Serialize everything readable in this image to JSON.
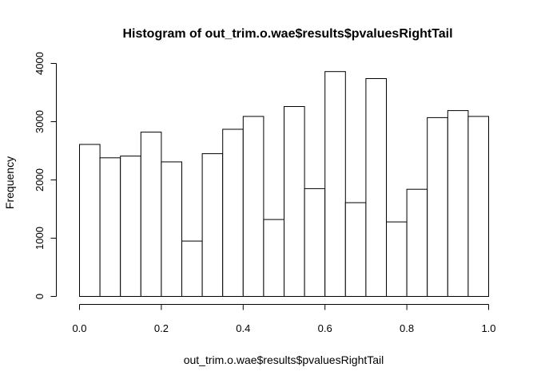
{
  "chart_data": {
    "type": "bar",
    "title": "Histogram of out_trim.o.wae$results$pvaluesRightTail",
    "xlabel": "out_trim.o.wae$results$pvaluesRightTail",
    "ylabel": "Frequency",
    "bin_edges": [
      0.0,
      0.05,
      0.1,
      0.15,
      0.2,
      0.25,
      0.3,
      0.35,
      0.4,
      0.45,
      0.5,
      0.55,
      0.6,
      0.65,
      0.7,
      0.75,
      0.8,
      0.85,
      0.9,
      0.95,
      1.0
    ],
    "values": [
      2610,
      2380,
      2410,
      2820,
      2310,
      950,
      2450,
      2870,
      3090,
      1320,
      3260,
      1850,
      3860,
      1610,
      3740,
      1280,
      1840,
      3070,
      3190,
      3090
    ],
    "xlim": [
      0,
      1
    ],
    "ylim": [
      0,
      4000
    ],
    "x_ticks": [
      "0.0",
      "0.2",
      "0.4",
      "0.6",
      "0.8",
      "1.0"
    ],
    "y_ticks": [
      "0",
      "1000",
      "2000",
      "3000",
      "4000"
    ],
    "bar_fill": "#ffffff",
    "bar_stroke": "#000000"
  }
}
